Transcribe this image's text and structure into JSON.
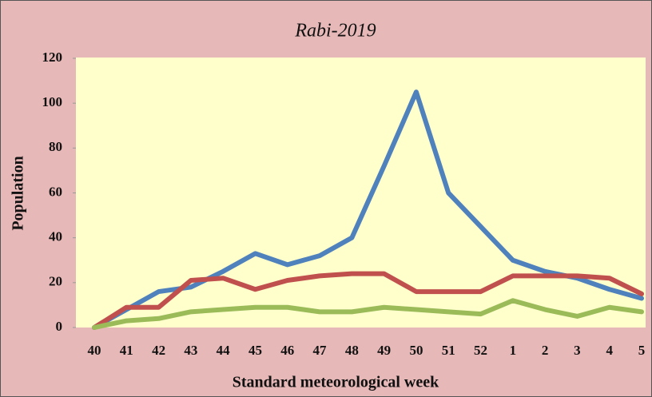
{
  "chart_data": {
    "type": "line",
    "title": "Rabi-2019",
    "x_label": "Standard meteorological week",
    "y_label": "Population",
    "categories": [
      "40",
      "41",
      "42",
      "43",
      "44",
      "45",
      "46",
      "47",
      "48",
      "49",
      "50",
      "51",
      "52",
      "1",
      "2",
      "3",
      "4",
      "5"
    ],
    "series": [
      {
        "color": "#4f81bd",
        "values": [
          0,
          8,
          16,
          18,
          25,
          33,
          28,
          32,
          40,
          72,
          105,
          60,
          45,
          30,
          25,
          22,
          17,
          13
        ]
      },
      {
        "color": "#c0504d",
        "values": [
          0,
          9,
          9,
          21,
          22,
          17,
          21,
          23,
          24,
          24,
          16,
          16,
          16,
          23,
          23,
          23,
          22,
          15
        ]
      },
      {
        "color": "#9bbb59",
        "values": [
          0,
          3,
          4,
          7,
          8,
          9,
          9,
          7,
          7,
          9,
          8,
          7,
          6,
          12,
          8,
          5,
          9,
          7
        ]
      }
    ],
    "ylim": [
      0,
      120
    ],
    "yticks": [
      0,
      20,
      40,
      60,
      80,
      100,
      120
    ]
  }
}
